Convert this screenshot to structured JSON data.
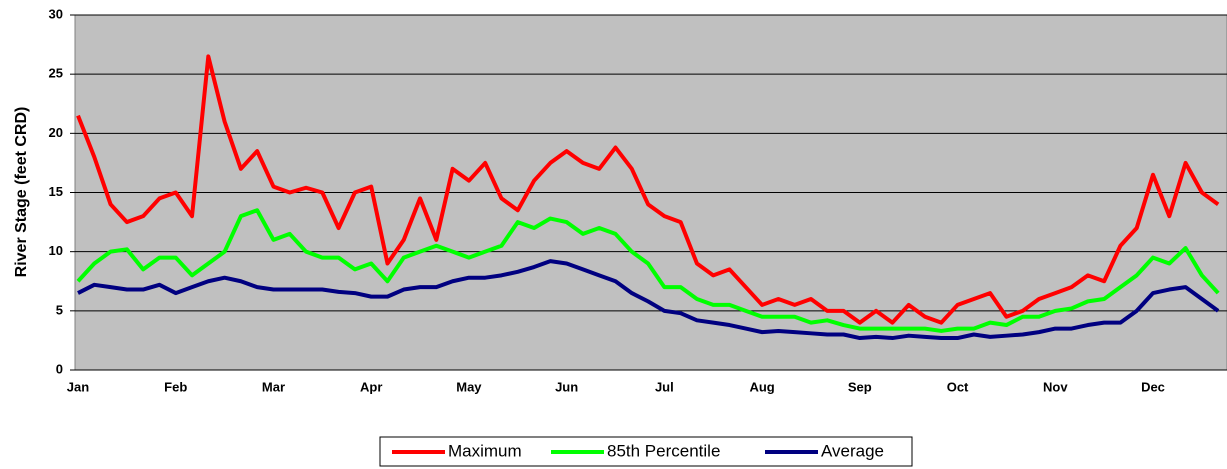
{
  "chart_data": {
    "type": "line",
    "ylabel": "River Stage (feet CRD)",
    "categories": [
      "Jan",
      null,
      null,
      null,
      null,
      null,
      "Feb",
      null,
      null,
      null,
      null,
      null,
      "Mar",
      null,
      null,
      null,
      null,
      null,
      "Apr",
      null,
      null,
      null,
      null,
      null,
      "May",
      null,
      null,
      null,
      null,
      null,
      "Jun",
      null,
      null,
      null,
      null,
      null,
      "Jul",
      null,
      null,
      null,
      null,
      null,
      "Aug",
      null,
      null,
      null,
      null,
      null,
      "Sep",
      null,
      null,
      null,
      null,
      null,
      "Oct",
      null,
      null,
      null,
      null,
      null,
      "Nov",
      null,
      null,
      null,
      null,
      null,
      "Dec",
      null,
      null,
      null,
      null
    ],
    "series": [
      {
        "name": "Maximum",
        "color": "#ff0000",
        "values": [
          21.5,
          18,
          14,
          12.5,
          13,
          14.5,
          15,
          13,
          26.5,
          21,
          17,
          18.5,
          15.5,
          15,
          15.4,
          15,
          12,
          15,
          15.5,
          9,
          11,
          14.5,
          11,
          17,
          16,
          17.5,
          14.5,
          13.5,
          16,
          17.5,
          18.5,
          17.5,
          17,
          18.8,
          17,
          14,
          13,
          12.5,
          9,
          8,
          8.5,
          7,
          5.5,
          6,
          5.5,
          6,
          5,
          5,
          4,
          5,
          4,
          5.5,
          4.5,
          4,
          5.5,
          6,
          6.5,
          4.5,
          5,
          6,
          6.5,
          7,
          8,
          7.5,
          10.5,
          12,
          16.5,
          13,
          17.5,
          15,
          14
        ]
      },
      {
        "name": "85th Percentile",
        "color": "#00ff00",
        "values": [
          7.5,
          9,
          10,
          10.2,
          8.5,
          9.5,
          9.5,
          8,
          9,
          10,
          13,
          13.5,
          11,
          11.5,
          10,
          9.5,
          9.5,
          8.5,
          9,
          7.5,
          9.5,
          10,
          10.5,
          10,
          9.5,
          10,
          10.5,
          12.5,
          12,
          12.8,
          12.5,
          11.5,
          12,
          11.5,
          10,
          9,
          7,
          7,
          6,
          5.5,
          5.5,
          5,
          4.5,
          4.5,
          4.5,
          4,
          4.2,
          3.8,
          3.5,
          3.5,
          3.5,
          3.5,
          3.5,
          3.3,
          3.5,
          3.5,
          4,
          3.8,
          4.5,
          4.5,
          5,
          5.2,
          5.8,
          6,
          7,
          8,
          9.5,
          9,
          10.3,
          8,
          6.5
        ]
      },
      {
        "name": "Average",
        "color": "#000080",
        "values": [
          6.5,
          7.2,
          7,
          6.8,
          6.8,
          7.2,
          6.5,
          7,
          7.5,
          7.8,
          7.5,
          7,
          6.8,
          6.8,
          6.8,
          6.8,
          6.6,
          6.5,
          6.2,
          6.2,
          6.8,
          7,
          7,
          7.5,
          7.8,
          7.8,
          8,
          8.3,
          8.7,
          9.2,
          9,
          8.5,
          8,
          7.5,
          6.5,
          5.8,
          5,
          4.8,
          4.2,
          4,
          3.8,
          3.5,
          3.2,
          3.3,
          3.2,
          3.1,
          3,
          3,
          2.7,
          2.8,
          2.7,
          2.9,
          2.8,
          2.7,
          2.7,
          3,
          2.8,
          2.9,
          3,
          3.2,
          3.5,
          3.5,
          3.8,
          4,
          4,
          5,
          6.5,
          6.8,
          7,
          6,
          5
        ]
      }
    ],
    "ylim": [
      0,
      30
    ],
    "yticks": [
      0,
      5,
      10,
      15,
      20,
      25,
      30
    ],
    "grid": true,
    "legend": "bottom"
  }
}
